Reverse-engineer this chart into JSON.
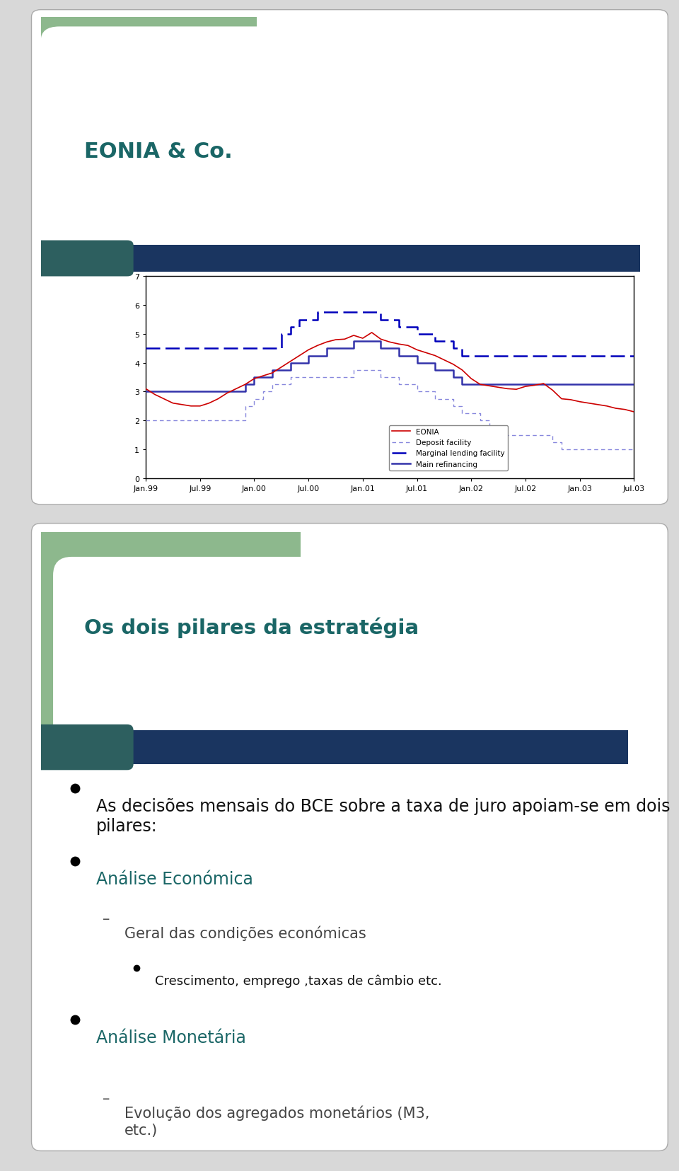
{
  "slide1_title": "EONIA & Co.",
  "slide1_title_color": "#1a6666",
  "slide2_title": "Os dois pilares da estratégia",
  "slide2_title_color": "#1a6666",
  "outer_bg": "#d8d8d8",
  "card_bg": "#ffffff",
  "green_accent": "#8db88d",
  "dark_blue_bar": "#1a3560",
  "dark_teal_accent": "#2d5f5f",
  "chart_bg": "#ffffff",
  "x_labels": [
    "Jan.99",
    "Jul.99",
    "Jan.00",
    "Jul.00",
    "Jan.01",
    "Jul.01",
    "Jan.02",
    "Jul.02",
    "Jan.03",
    "Jul.03"
  ],
  "ylim": [
    0,
    7
  ],
  "yticks": [
    0,
    1,
    2,
    3,
    4,
    5,
    6,
    7
  ],
  "eonia_color": "#cc0000",
  "deposit_color": "#8888dd",
  "marginal_color": "#0000bb",
  "main_color": "#3333aa",
  "eonia_data": [
    3.1,
    2.9,
    2.75,
    2.6,
    2.55,
    2.5,
    2.5,
    2.6,
    2.75,
    2.95,
    3.1,
    3.25,
    3.45,
    3.55,
    3.65,
    3.85,
    4.05,
    4.25,
    4.45,
    4.6,
    4.72,
    4.8,
    4.82,
    4.95,
    4.85,
    5.05,
    4.82,
    4.72,
    4.65,
    4.6,
    4.45,
    4.35,
    4.25,
    4.1,
    3.95,
    3.75,
    3.45,
    3.25,
    3.2,
    3.15,
    3.1,
    3.08,
    3.18,
    3.22,
    3.28,
    3.05,
    2.75,
    2.72,
    2.65,
    2.6,
    2.55,
    2.5,
    2.42,
    2.38,
    2.3
  ],
  "deposit_data": [
    2.0,
    2.0,
    2.0,
    2.0,
    2.0,
    2.0,
    2.0,
    2.0,
    2.0,
    2.0,
    2.0,
    2.5,
    2.75,
    3.0,
    3.25,
    3.25,
    3.5,
    3.5,
    3.5,
    3.5,
    3.5,
    3.5,
    3.5,
    3.75,
    3.75,
    3.75,
    3.5,
    3.5,
    3.25,
    3.25,
    3.0,
    3.0,
    2.75,
    2.75,
    2.5,
    2.25,
    2.25,
    2.0,
    1.75,
    1.75,
    1.5,
    1.5,
    1.5,
    1.5,
    1.5,
    1.25,
    1.0,
    1.0,
    1.0,
    1.0,
    1.0,
    1.0,
    1.0,
    1.0,
    1.0
  ],
  "marginal_data": [
    4.5,
    4.5,
    4.5,
    4.5,
    4.5,
    4.5,
    4.5,
    4.5,
    4.5,
    4.5,
    4.5,
    4.5,
    4.5,
    4.5,
    4.5,
    5.0,
    5.25,
    5.5,
    5.5,
    5.75,
    5.75,
    5.75,
    5.75,
    5.75,
    5.75,
    5.75,
    5.5,
    5.5,
    5.25,
    5.25,
    5.0,
    5.0,
    4.75,
    4.75,
    4.5,
    4.25,
    4.25,
    4.25,
    4.25,
    4.25,
    4.25,
    4.25,
    4.25,
    4.25,
    4.25,
    4.25,
    4.25,
    4.25,
    4.25,
    4.25,
    4.25,
    4.25,
    4.25,
    4.25,
    4.25
  ],
  "main_data": [
    3.0,
    3.0,
    3.0,
    3.0,
    3.0,
    3.0,
    3.0,
    3.0,
    3.0,
    3.0,
    3.0,
    3.25,
    3.5,
    3.5,
    3.75,
    3.75,
    4.0,
    4.0,
    4.25,
    4.25,
    4.5,
    4.5,
    4.5,
    4.75,
    4.75,
    4.75,
    4.5,
    4.5,
    4.25,
    4.25,
    4.0,
    4.0,
    3.75,
    3.75,
    3.5,
    3.25,
    3.25,
    3.25,
    3.25,
    3.25,
    3.25,
    3.25,
    3.25,
    3.25,
    3.25,
    3.25,
    3.25,
    3.25,
    3.25,
    3.25,
    3.25,
    3.25,
    3.25,
    3.25,
    3.25
  ],
  "legend_labels": [
    "EONIA",
    "Deposit facility",
    "Marginal lending facility",
    "Main refinancing"
  ],
  "bullet_items": [
    {
      "text": "As decisões mensais do BCE sobre a taxa de juro apoiam-se em dois pilares:",
      "level": 0,
      "color": "#111111",
      "fontsize": 17
    },
    {
      "text": "Análise Económica",
      "level": 1,
      "color": "#1a6666",
      "fontsize": 17
    },
    {
      "text": "Geral das condições económicas",
      "level": 2,
      "color": "#444444",
      "fontsize": 15
    },
    {
      "text": "Crescimento, emprego ,taxas de câmbio etc.",
      "level": 3,
      "color": "#111111",
      "fontsize": 13
    },
    {
      "text": "Análise Monetária",
      "level": 1,
      "color": "#1a6666",
      "fontsize": 17
    },
    {
      "text": "Evolução dos agregados monetários (M3,\netc.)",
      "level": 2,
      "color": "#444444",
      "fontsize": 15
    }
  ]
}
